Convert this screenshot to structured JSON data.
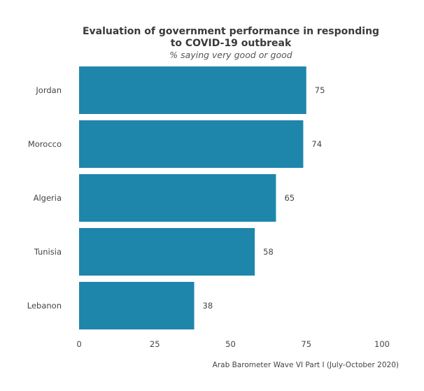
{
  "chart_data": {
    "type": "bar",
    "orientation": "horizontal",
    "title_lines": [
      "Evaluation of government performance in responding",
      "to COVID-19 outbreak"
    ],
    "subtitle": "% saying very good or good",
    "categories": [
      "Jordan",
      "Morocco",
      "Algeria",
      "Tunisia",
      "Lebanon"
    ],
    "values": [
      75,
      74,
      65,
      58,
      38
    ],
    "xlim": [
      0,
      100
    ],
    "xticks": [
      0,
      25,
      50,
      75,
      100
    ],
    "xlabel": "",
    "ylabel": "",
    "grid": false,
    "source": "Arab Barometer Wave VI Part I (July-October 2020)",
    "bar_color": "#1f86ab"
  }
}
